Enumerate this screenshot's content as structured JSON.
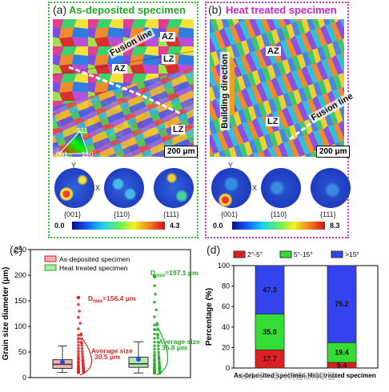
{
  "panel_a": {
    "label": "(a)",
    "title": "As-deposited specimen",
    "map_labels": [
      "Fusion line",
      "AZ",
      "AZ",
      "LZ",
      "LZ"
    ],
    "scale_bar": "200 μm",
    "ipf_key": {
      "top": "111",
      "left": "001",
      "right": "110"
    },
    "pole_figures": [
      "{001}",
      "{110}",
      "{111}"
    ],
    "pf_axes": {
      "y": "Y",
      "x": "X"
    },
    "colorbar": {
      "min": "0.0",
      "max": "4.3"
    }
  },
  "panel_b": {
    "label": "(b)",
    "title": "Heat treated specimen",
    "map_labels": [
      "AZ",
      "Building direction",
      "LZ",
      "Fusion line"
    ],
    "scale_bar": "200 μm",
    "pole_figures": [
      "{001}",
      "{110}",
      "{111}"
    ],
    "pf_axes": {
      "y": "Y",
      "x": "X"
    },
    "colorbar": {
      "min": "0.0",
      "max": "8.3"
    }
  },
  "colors": {
    "green_frame": "#33bb33",
    "magenta_frame": "#cc33cc",
    "as_deposited": "#e02020",
    "heat_treated": "#22aa22",
    "low_angle": "#e02020",
    "mid_angle": "#33dd33",
    "high_angle": "#3344ee"
  },
  "chart_data": [
    {
      "type": "box",
      "panel_label": "(c)",
      "ylabel": "Grain size diameter (μm)",
      "ylim": [
        0,
        250
      ],
      "yticks": [
        0,
        50,
        100,
        150,
        200,
        250
      ],
      "legend": [
        "As-deposited specimen",
        "Heat treated specimen"
      ],
      "series": [
        {
          "name": "As-deposited specimen",
          "q1": 18,
          "median": 26,
          "q3": 35,
          "whisker_low": 10,
          "whisker_high": 62,
          "mean": 30.5,
          "max": 156.4
        },
        {
          "name": "Heat treated specimen",
          "q1": 20,
          "median": 27,
          "q3": 40,
          "whisker_low": 9,
          "whisker_high": 70,
          "mean": 35.8,
          "max": 197.1
        }
      ],
      "annotations": [
        {
          "text_main": "D",
          "text_sub": "max",
          "text_rest": "=156.4 μm"
        },
        {
          "text_main": "Average size",
          "text_rest": "30.5 μm"
        },
        {
          "text_main": "D",
          "text_sub": "max",
          "text_rest": "=197.1 μm"
        },
        {
          "text_main": "Average size",
          "text_rest": "35.8 μm"
        }
      ]
    },
    {
      "type": "bar",
      "stacked": true,
      "panel_label": "(d)",
      "ylabel": "Percentage (%)",
      "ylim": [
        0,
        100
      ],
      "yticks": [
        0,
        20,
        40,
        60,
        80,
        100
      ],
      "categories": [
        "As-deposited specimen",
        "Heat treated specimen"
      ],
      "series": [
        {
          "name": "2°-5°",
          "values": [
            17.7,
            5.4
          ]
        },
        {
          "name": "5°-15°",
          "values": [
            35.0,
            19.4
          ]
        },
        {
          "name": ">15°",
          "values": [
            47.3,
            75.2
          ]
        }
      ],
      "data_labels": [
        [
          "17.7",
          "35.0",
          "47.3"
        ],
        [
          "5.4",
          "19.4",
          "75.2"
        ]
      ]
    }
  ],
  "watermark": "公众号 · 增材制造硕博联盟"
}
